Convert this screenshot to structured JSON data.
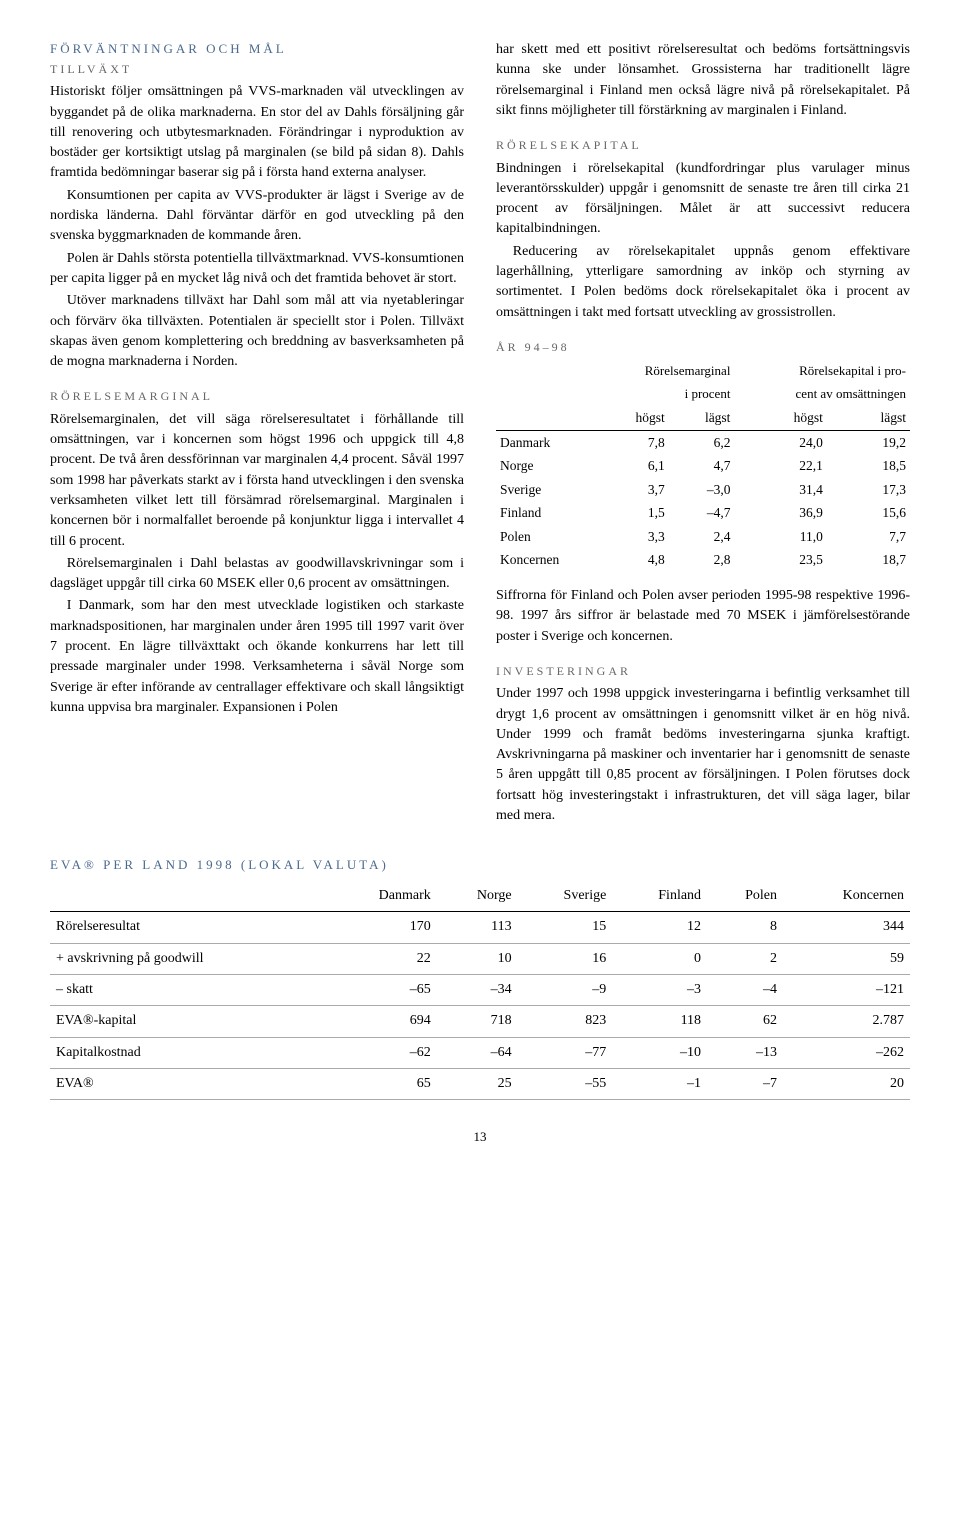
{
  "left": {
    "head1": "FÖRVÄNTNINGAR OCH MÅL",
    "sub1": "TILLVÄXT",
    "p1": "Historiskt följer omsättningen på VVS-marknaden väl utvecklingen av byggandet på de olika marknaderna. En stor del av Dahls försäljning går till renovering och utbytesmarknaden. Förändringar i nyproduktion av bostäder ger kortsiktigt utslag på marginalen (se bild på sidan 8). Dahls framtida bedömningar baserar sig på i första hand externa analyser.",
    "p2": "Konsumtionen per capita av VVS-produkter är lägst i Sverige av de nordiska länderna. Dahl förväntar därför en god utveckling på den svenska byggmarknaden de kommande åren.",
    "p3": "Polen är Dahls största potentiella tillväxtmarknad. VVS-konsumtionen per capita ligger på en mycket låg nivå och det framtida behovet är stort.",
    "p4": "Utöver marknadens tillväxt har Dahl som mål att via nyetableringar och förvärv öka tillväxten. Potentialen är speciellt stor i Polen. Tillväxt skapas även genom komplettering och breddning av basverksamheten på de mogna marknaderna i Norden.",
    "sub2": "RÖRELSEMARGINAL",
    "p5": "Rörelsemarginalen, det vill säga rörelseresultatet i förhållande till omsättningen, var i koncernen som högst 1996 och uppgick till 4,8 procent. De två åren dessförinnan var marginalen 4,4 procent. Såväl 1997 som 1998 har påverkats starkt av i första hand utvecklingen i den svenska verksamheten vilket lett till försämrad rörelsemarginal. Marginalen i koncernen bör i normalfallet beroende på konjunktur ligga i intervallet 4 till 6 procent.",
    "p6": "Rörelsemarginalen i Dahl belastas av goodwillavskrivningar som i dagsläget uppgår till cirka 60 MSEK eller 0,6 procent av omsättningen.",
    "p7": "I Danmark, som har den mest utvecklade logistiken och starkaste marknadspositionen, har marginalen under åren 1995 till 1997 varit över 7 procent. En lägre tillväxttakt och ökande konkurrens har lett till pressade marginaler under 1998. Verksamheterna i såväl Norge som Sverige är efter införande av centrallager effektivare och skall långsiktigt kunna uppvisa bra marginaler. Expansionen i Polen"
  },
  "right": {
    "p1": "har skett med ett positivt rörelseresultat och bedöms fortsättningsvis kunna ske under lönsamhet. Grossisterna har traditionellt lägre rörelsemarginal i Finland men också lägre nivå på rörelsekapitalet. På sikt finns möjligheter till förstärkning av marginalen i Finland.",
    "sub1": "RÖRELSEKAPITAL",
    "p2": "Bindningen i rörelsekapital (kundfordringar plus varulager minus leverantörsskulder) uppgår i genomsnitt de senaste tre åren till cirka 21 procent av försäljningen. Målet är att successivt reducera kapitalbindningen.",
    "p3": "Reducering av rörelsekapitalet uppnås genom effektivare lagerhållning, ytterligare samordning av inköp och styrning av sortimentet. I Polen bedöms dock rörelsekapitalet öka i procent av omsättningen i takt med fortsatt utveckling av grossistrollen.",
    "sub2": "ÅR 94–98",
    "tbl": {
      "h1a": "Rörelsemarginal",
      "h1b": "i procent",
      "h2a": "Rörelsekapital i pro-",
      "h2b": "cent av omsättningen",
      "ch": "högst",
      "cl": "lägst",
      "rows": [
        {
          "n": "Danmark",
          "a": "7,8",
          "b": "6,2",
          "c": "24,0",
          "d": "19,2"
        },
        {
          "n": "Norge",
          "a": "6,1",
          "b": "4,7",
          "c": "22,1",
          "d": "18,5"
        },
        {
          "n": "Sverige",
          "a": "3,7",
          "b": "–3,0",
          "c": "31,4",
          "d": "17,3"
        },
        {
          "n": "Finland",
          "a": "1,5",
          "b": "–4,7",
          "c": "36,9",
          "d": "15,6"
        },
        {
          "n": "Polen",
          "a": "3,3",
          "b": "2,4",
          "c": "11,0",
          "d": "7,7"
        },
        {
          "n": "Koncernen",
          "a": "4,8",
          "b": "2,8",
          "c": "23,5",
          "d": "18,7"
        }
      ]
    },
    "p4": "Siffrorna för Finland och Polen avser perioden 1995-98 respektive 1996-98. 1997 års siffror är belastade med 70 MSEK i jämförelsestörande poster i Sverige och koncernen.",
    "sub3": "INVESTERINGAR",
    "p5": "Under 1997 och 1998 uppgick investeringarna i befintlig verksamhet till drygt 1,6 procent av omsättningen i genomsnitt vilket är en hög nivå. Under 1999 och framåt bedöms investeringarna sjunka kraftigt. Avskrivningarna på maskiner och inventarier har i genomsnitt de senaste 5 åren uppgått till 0,85 procent av försäljningen. I Polen förutses dock fortsatt hög investeringstakt i infrastrukturen, det vill säga lager, bilar med mera."
  },
  "eva": {
    "head": "EVA® PER LAND 1998 (LOKAL VALUTA)",
    "cols": [
      "Danmark",
      "Norge",
      "Sverige",
      "Finland",
      "Polen",
      "Koncernen"
    ],
    "rows": [
      {
        "n": "Rörelseresultat",
        "v": [
          "170",
          "113",
          "15",
          "12",
          "8",
          "344"
        ]
      },
      {
        "n": "+ avskrivning på goodwill",
        "v": [
          "22",
          "10",
          "16",
          "0",
          "2",
          "59"
        ]
      },
      {
        "n": "– skatt",
        "v": [
          "–65",
          "–34",
          "–9",
          "–3",
          "–4",
          "–121"
        ]
      },
      {
        "n": "EVA®-kapital",
        "v": [
          "694",
          "718",
          "823",
          "118",
          "62",
          "2.787"
        ]
      },
      {
        "n": "Kapitalkostnad",
        "v": [
          "–62",
          "–64",
          "–77",
          "–10",
          "–13",
          "–262"
        ]
      },
      {
        "n": "EVA®",
        "v": [
          "65",
          "25",
          "–55",
          "–1",
          "–7",
          "20"
        ]
      }
    ]
  },
  "pagenum": "13"
}
